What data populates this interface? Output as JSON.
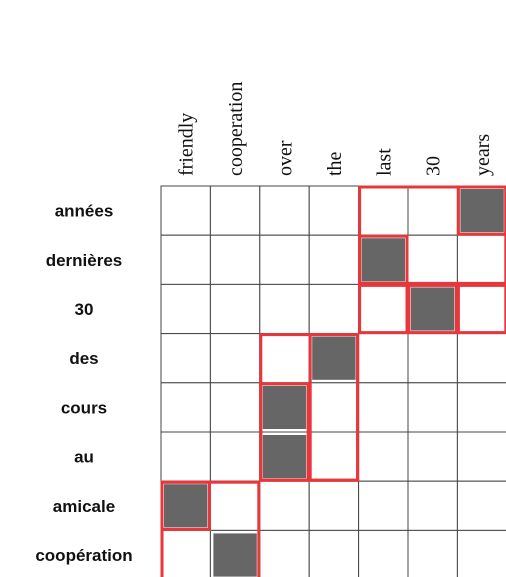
{
  "columns": [
    "friendly",
    "cooperation",
    "over",
    "the",
    "last",
    "30",
    "years"
  ],
  "rows": [
    "années",
    "dernières",
    "30",
    "des",
    "cours",
    "au",
    "amicale",
    "coopération"
  ],
  "alignments": [
    [
      0,
      6
    ],
    [
      1,
      4
    ],
    [
      2,
      5
    ],
    [
      3,
      3
    ],
    [
      4,
      2
    ],
    [
      5,
      2
    ],
    [
      6,
      0
    ],
    [
      7,
      1
    ]
  ],
  "phrase_boxes": [
    [
      0,
      1,
      4,
      6
    ],
    [
      0,
      0,
      6,
      6
    ],
    [
      1,
      1,
      4,
      4
    ],
    [
      2,
      2,
      4,
      4
    ],
    [
      2,
      2,
      5,
      5
    ],
    [
      2,
      2,
      6,
      6
    ],
    [
      3,
      5,
      2,
      3
    ],
    [
      4,
      5,
      2,
      2
    ],
    [
      3,
      5,
      3,
      3
    ],
    [
      6,
      7,
      0,
      1
    ],
    [
      6,
      6,
      0,
      0
    ]
  ]
}
